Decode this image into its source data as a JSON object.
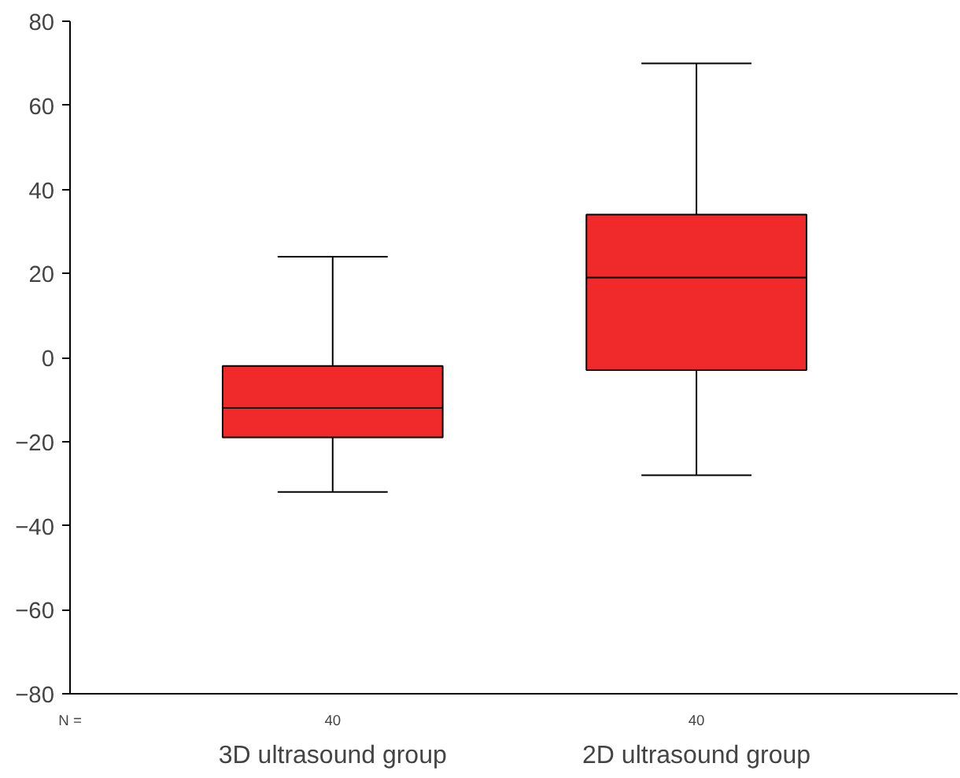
{
  "chart_data": {
    "type": "box",
    "categories": [
      "3D ultrasound group",
      "2D ultrasound group"
    ],
    "boxes": [
      {
        "low": -32,
        "q1": -19,
        "median": -12,
        "q3": -2,
        "high": 24
      },
      {
        "low": -28,
        "q1": -3,
        "median": 19,
        "q3": 34,
        "high": 70
      }
    ],
    "color": "#f02a2a",
    "ylim": [
      -80,
      80
    ],
    "yticks": [
      -80,
      -60,
      -40,
      -20,
      0,
      20,
      40,
      60,
      80
    ],
    "grid": false,
    "annotations": [
      "N =",
      "40",
      "40"
    ]
  }
}
